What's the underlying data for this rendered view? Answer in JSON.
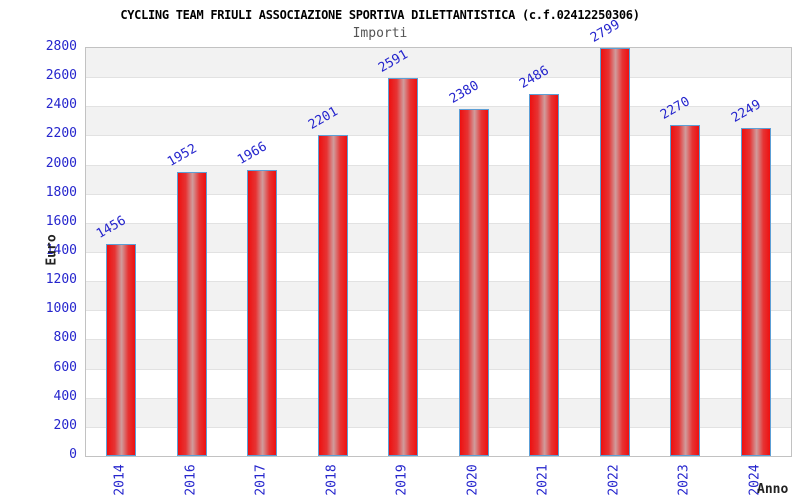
{
  "header": {
    "title": "CYCLING TEAM FRIULI ASSOCIAZIONE SPORTIVA DILETTANTISTICA (c.f.02412250306)",
    "subtitle": "Importi"
  },
  "chart_data": {
    "type": "bar",
    "title": "Importi",
    "categories": [
      "2014",
      "2016",
      "2017",
      "2018",
      "2019",
      "2020",
      "2021",
      "2022",
      "2023",
      "2024"
    ],
    "values": [
      1456,
      1952,
      1966,
      2201,
      2591,
      2380,
      2486,
      2799,
      2270,
      2249
    ],
    "xlabel": "Anno",
    "ylabel": "Euro",
    "ylim": [
      0,
      2800
    ],
    "ytick_step": 200,
    "yticks": [
      0,
      200,
      400,
      600,
      800,
      1000,
      1200,
      1400,
      1600,
      1800,
      2000,
      2200,
      2400,
      2600,
      2800
    ],
    "legend": "none",
    "grid": "horizontal-bands",
    "colors": {
      "bar_fill": "#ee1010",
      "bar_highlight": "#d09d9d",
      "bar_border": "#5c9fd6",
      "tick_label": "#2525cd",
      "value_label": "#2525cd",
      "band_gray": "#f2f2f2",
      "band_white": "#ffffff",
      "title": "#000000",
      "subtitle": "#555555",
      "axis_title": "#222222"
    }
  }
}
